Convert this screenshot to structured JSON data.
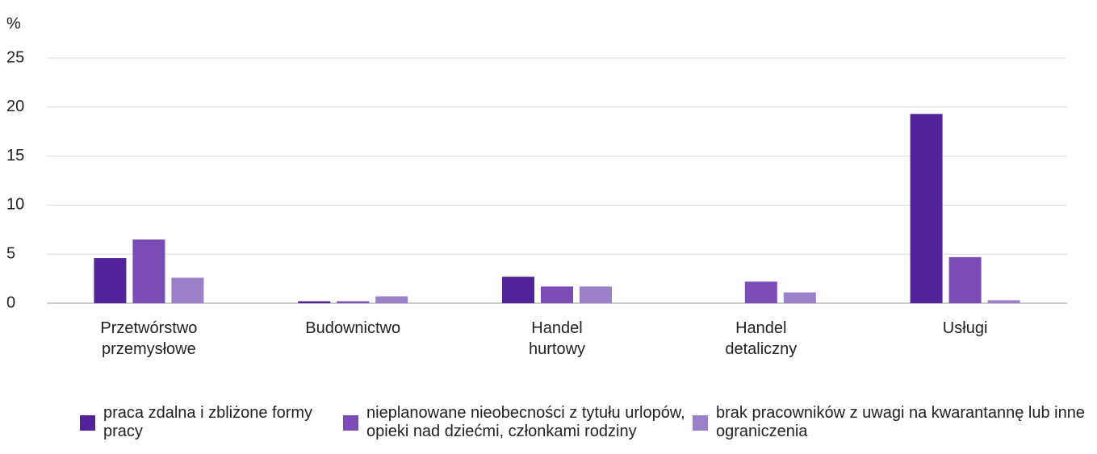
{
  "chart_data": {
    "type": "bar",
    "y_unit": "%",
    "categories": [
      "Przetwórstwo przemysłowe",
      "Budownictwo",
      "Handel hurtowy",
      "Handel detaliczny",
      "Usługi"
    ],
    "series": [
      {
        "name": "praca zdalna i zbliżone formy pracy",
        "color": "#52239a",
        "values": [
          4.6,
          0.2,
          2.7,
          0,
          19.3
        ]
      },
      {
        "name": "nieplanowane nieobecności z tytułu urlopów, opieki nad dziećmi, członkami rodziny",
        "color": "#7b4bb8",
        "values": [
          6.5,
          0.2,
          1.7,
          2.2,
          4.7
        ]
      },
      {
        "name": "brak pracowników z uwagi na kwarantannę lub inne ograniczenia",
        "color": "#9b7fc9",
        "values": [
          2.6,
          0.7,
          1.7,
          1.1,
          0.3
        ]
      }
    ],
    "ylim": [
      0,
      25
    ],
    "yticks": [
      0,
      5,
      10,
      15,
      20,
      25
    ],
    "grid": true,
    "legend": "bottom"
  }
}
